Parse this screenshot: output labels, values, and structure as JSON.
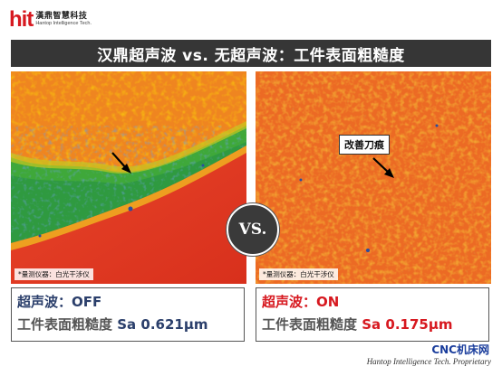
{
  "logo": {
    "mark": "hit",
    "name_cn": "漢鼎智慧科技",
    "name_en": "Hantop Intelligence Tech."
  },
  "title": "汉鼎超声波 vs. 无超声波：工件表面粗糙度",
  "vs_label": "VS.",
  "left_panel": {
    "source": "*量测仪器：白光干涉仪",
    "mode_label": "超声波：",
    "mode_value": "OFF",
    "metric_label": "工件表面粗糙度",
    "metric_value": "Sa 0.621μm"
  },
  "right_panel": {
    "source": "*量测仪器：白光干涉仪",
    "annotation": "改善刀痕",
    "mode_label": "超声波：",
    "mode_value": "ON",
    "metric_label": "工件表面粗糙度",
    "metric_value": "Sa 0.175μm"
  },
  "watermark": "CNC机床网",
  "footer": "Hantop Intelligence Tech. Proprietary",
  "colors": {
    "brand_red": "#d71920",
    "navy": "#2b3f6b",
    "title_bar": "#363636"
  }
}
